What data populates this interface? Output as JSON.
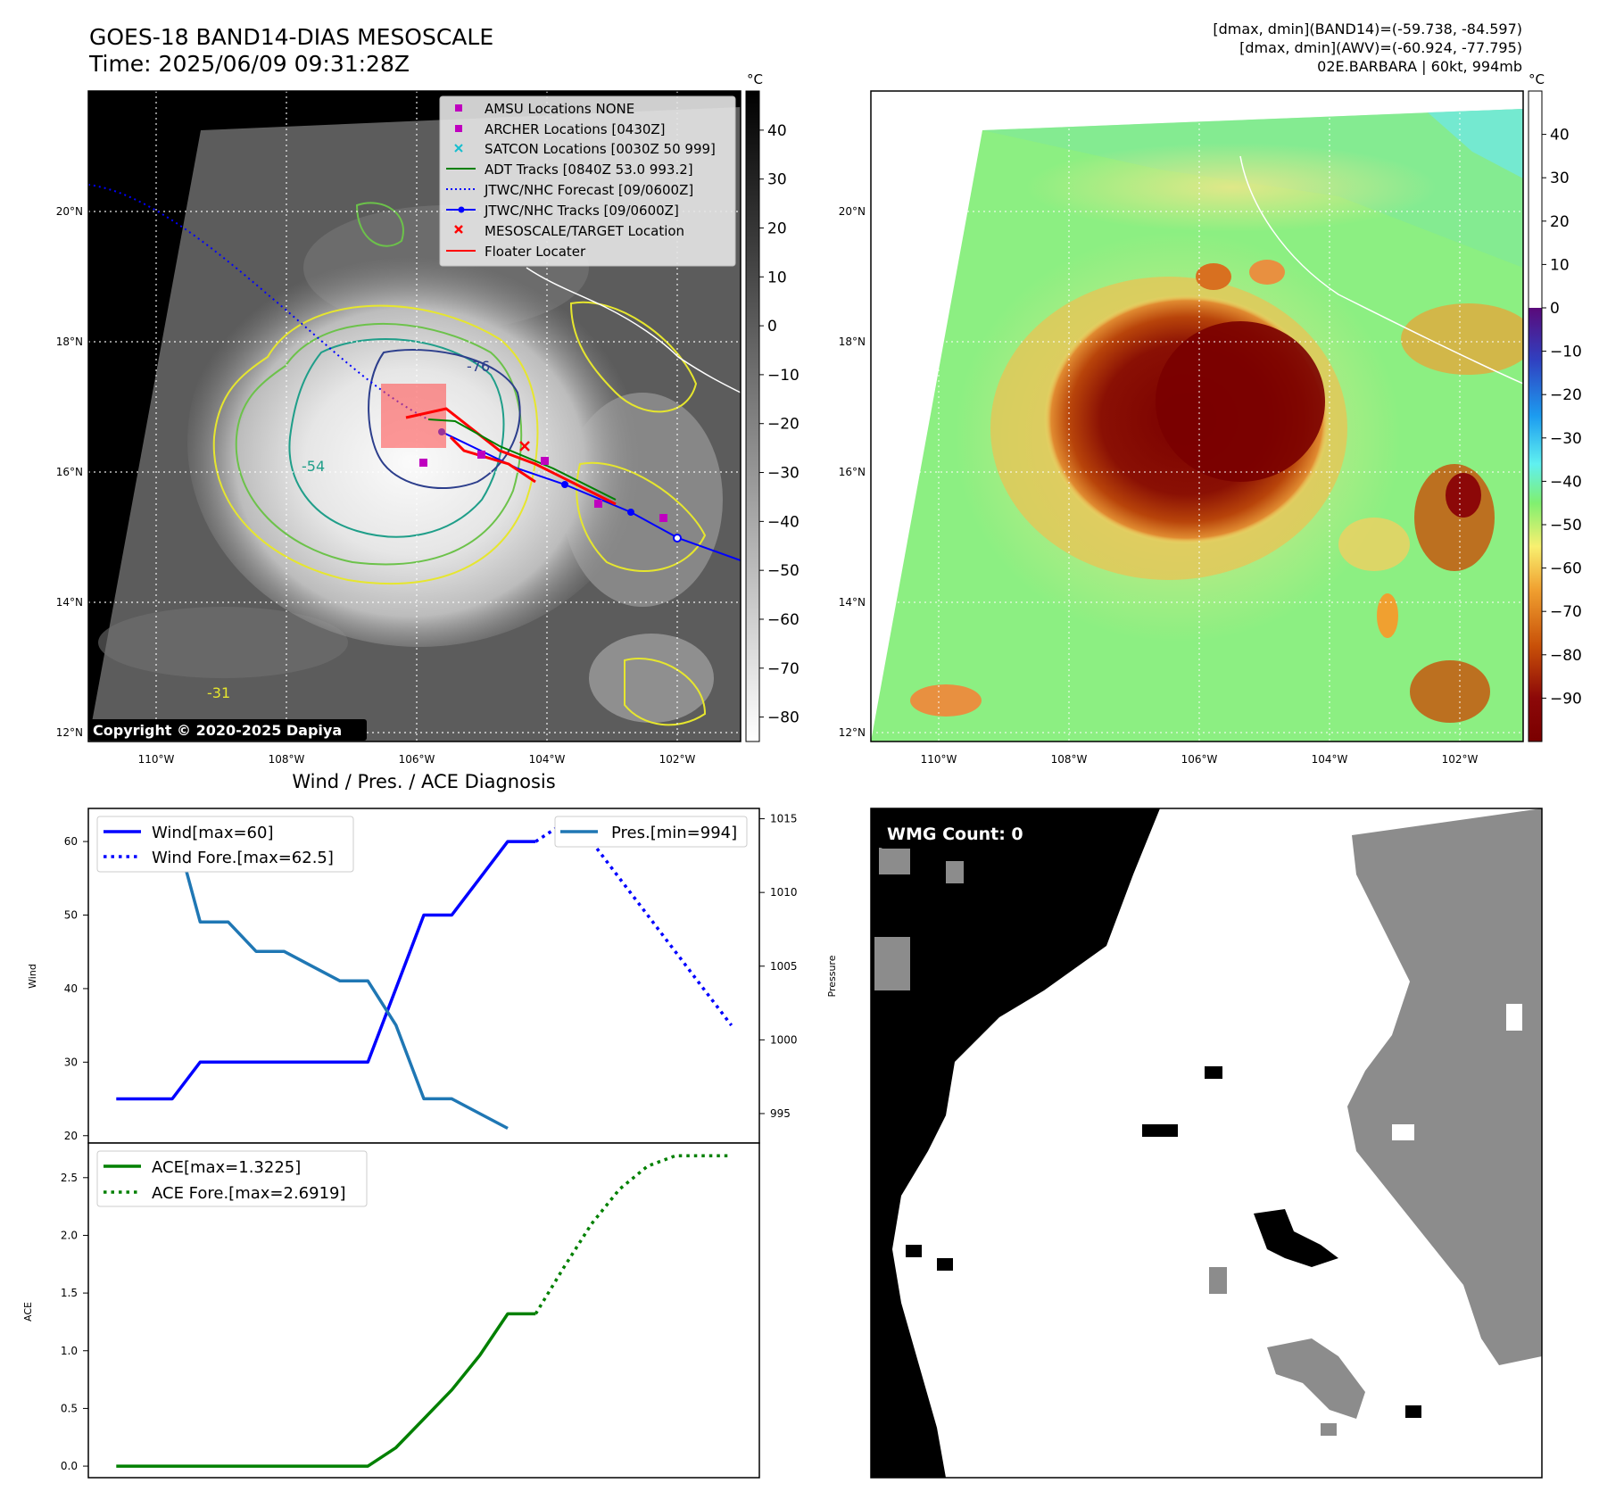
{
  "header": {
    "title_line1": "GOES-18 BAND14-DIAS MESOSCALE",
    "title_line2": "Time: 2025/06/09 09:31:28Z",
    "info_line1": "[dmax, dmin](BAND14)=(-59.738, -84.597)",
    "info_line2": "[dmax, dmin](AWV)=(-60.924, -77.795)",
    "info_line3": "02E.BARBARA | 60kt, 994mb"
  },
  "copyright": "Copyright © 2020-2025 Dapiya",
  "colors": {
    "wind": "#0000ff",
    "pressure": "#1f77b4",
    "ace": "#008000",
    "track_red": "#ff0000",
    "contour_yellow": "#e6e62e",
    "contour_green": "#6cc24a",
    "contour_teal": "#1f9e89",
    "contour_navy": "#2c3e8c"
  },
  "maps": {
    "lon_ticks": [
      "110°W",
      "108°W",
      "106°W",
      "104°W",
      "102°W"
    ],
    "lat_ticks": [
      "12°N",
      "14°N",
      "16°N",
      "18°N",
      "20°N"
    ],
    "contour_labels": [
      "-76",
      "-54",
      "-31"
    ],
    "left_colorbar": {
      "unit": "°C",
      "ticks": [
        "40",
        "30",
        "20",
        "10",
        "0",
        "−10",
        "−20",
        "−30",
        "−40",
        "−50",
        "−60",
        "−70",
        "−80"
      ],
      "range": [
        -85,
        48
      ]
    },
    "right_colorbar": {
      "unit": "°C",
      "ticks": [
        "40",
        "30",
        "20",
        "10",
        "0",
        "−10",
        "−20",
        "−30",
        "−40",
        "−50",
        "−60",
        "−70",
        "−80",
        "−90"
      ],
      "range": [
        -100,
        50
      ]
    },
    "legend": [
      {
        "label": "AMSU Locations NONE",
        "marker": "square",
        "color": "#bf00bf"
      },
      {
        "label": "ARCHER Locations [0430Z]",
        "marker": "square",
        "color": "#bf00bf"
      },
      {
        "label": "SATCON Locations [0030Z 50 999]",
        "marker": "x",
        "color": "#17becf"
      },
      {
        "label": "ADT Tracks [0840Z 53.0 993.2]",
        "marker": "line",
        "color": "#008000"
      },
      {
        "label": "JTWC/NHC Forecast [09/0600Z]",
        "marker": "dotted",
        "color": "#0000ff"
      },
      {
        "label": "JTWC/NHC Tracks [09/0600Z]",
        "marker": "line-dot",
        "color": "#0000ff"
      },
      {
        "label": "MESOSCALE/TARGET Location",
        "marker": "x",
        "color": "#ff0000"
      },
      {
        "label": "Floater Locater",
        "marker": "line",
        "color": "#ff0000"
      }
    ]
  },
  "wmg": {
    "label": "WMG Count: 0"
  },
  "chart_data": [
    {
      "type": "line",
      "title": "Wind / Pres. / ACE Diagnosis",
      "ylabel": "Wind",
      "ylim": [
        19,
        64.5
      ],
      "yticks": [
        20,
        30,
        40,
        50,
        60
      ],
      "xlim": [
        -1,
        23
      ],
      "series": [
        {
          "name": "Wind[max=60]",
          "style": "solid",
          "color": "#0000ff",
          "x": [
            0,
            1,
            2,
            3,
            4,
            5,
            6,
            7,
            8,
            9,
            10,
            11,
            12,
            13,
            14,
            15
          ],
          "values": [
            25,
            25,
            25,
            30,
            30,
            30,
            30,
            30,
            30,
            30,
            40,
            50,
            50,
            55,
            60,
            60
          ]
        },
        {
          "name": "Wind Fore.[max=62.5]",
          "style": "dotted",
          "color": "#0000ff",
          "x": [
            15,
            16,
            17,
            18,
            19,
            20,
            21,
            22
          ],
          "values": [
            60,
            62.5,
            60,
            55,
            50,
            45,
            40,
            35
          ]
        }
      ],
      "legend": "top-left"
    },
    {
      "type": "line",
      "ylabel": "Pressure",
      "ylim": [
        993,
        1015.7
      ],
      "yticks": [
        995,
        1000,
        1005,
        1010,
        1015
      ],
      "xlim": [
        -1,
        23
      ],
      "series": [
        {
          "name": "Pres.[min=994]",
          "style": "solid",
          "color": "#1f77b4",
          "x": [
            0,
            1,
            2,
            3,
            4,
            5,
            6,
            7,
            8,
            9,
            10,
            11,
            12,
            13,
            14
          ],
          "values": [
            1015,
            1015,
            1015,
            1008,
            1008,
            1006,
            1006,
            1005,
            1004,
            1004,
            1001,
            996,
            996,
            995,
            994
          ]
        }
      ],
      "legend": "top-right"
    },
    {
      "type": "line",
      "ylabel": "ACE",
      "ylim": [
        -0.1,
        2.8
      ],
      "yticks": [
        0.0,
        0.5,
        1.0,
        1.5,
        2.0,
        2.5
      ],
      "xlim": [
        -1,
        23
      ],
      "series": [
        {
          "name": "ACE[max=1.3225]",
          "style": "solid",
          "color": "#008000",
          "x": [
            0,
            1,
            2,
            3,
            4,
            5,
            6,
            7,
            8,
            9,
            10,
            11,
            12,
            13,
            14,
            15
          ],
          "values": [
            0,
            0,
            0,
            0,
            0,
            0,
            0,
            0,
            0,
            0,
            0.16,
            0.41,
            0.66,
            0.96,
            1.32,
            1.32
          ]
        },
        {
          "name": "ACE Fore.[max=2.6919]",
          "style": "dotted",
          "color": "#008000",
          "x": [
            15,
            16,
            17,
            18,
            19,
            20,
            21,
            22
          ],
          "values": [
            1.32,
            1.72,
            2.1,
            2.4,
            2.6,
            2.69,
            2.69,
            2.69
          ]
        }
      ],
      "legend": "top-left"
    }
  ]
}
